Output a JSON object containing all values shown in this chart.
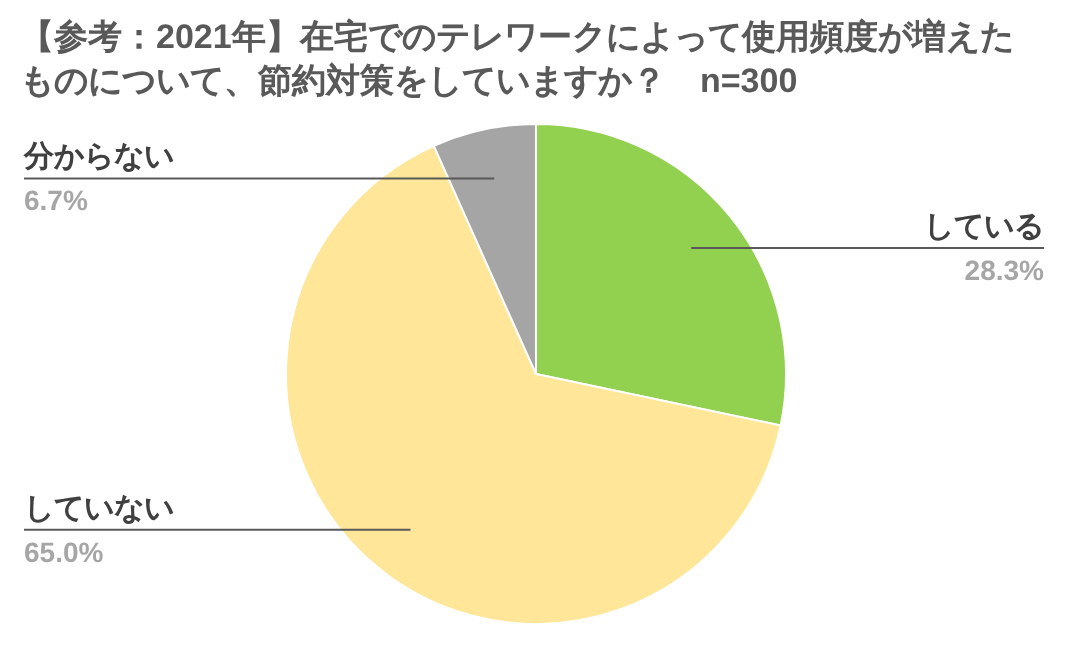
{
  "chart_data": {
    "type": "pie",
    "title": "【参考：2021年】在宅でのテレワークによって使用頻度が増えたものについて、節約対策をしていますか？　n=300",
    "categories": [
      "している",
      "していない",
      "分からない"
    ],
    "values": [
      28.3,
      65.0,
      6.7
    ],
    "colors": [
      "#92d050",
      "#ffe699",
      "#a5a5a5"
    ],
    "value_labels": [
      "28.3%",
      "65.0%",
      "6.7%"
    ],
    "legend": false
  }
}
